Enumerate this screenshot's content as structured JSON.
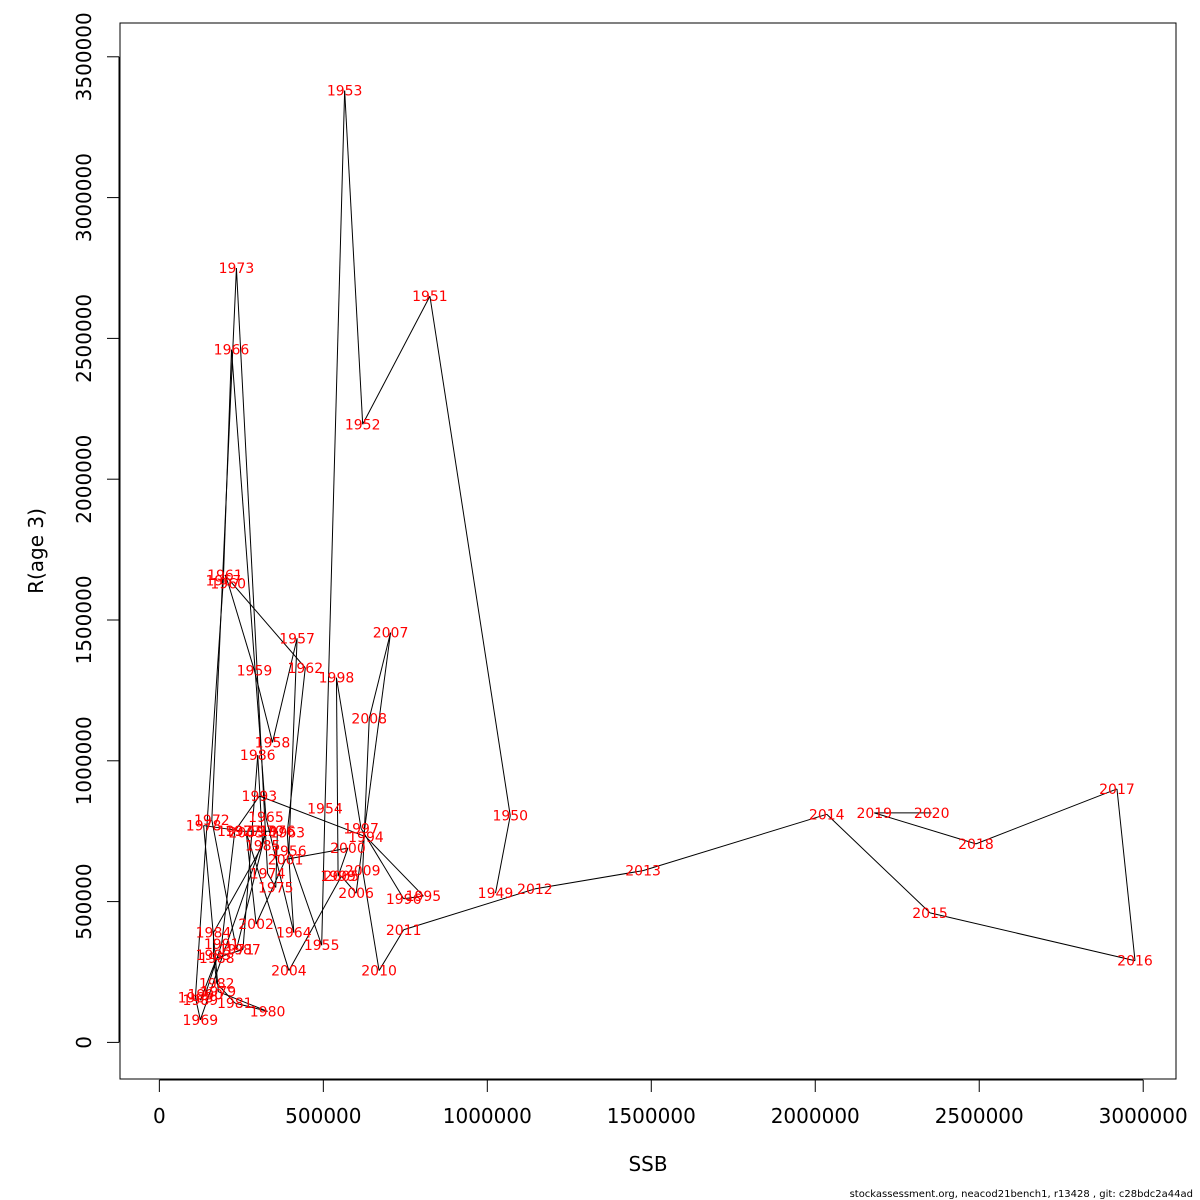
{
  "footer": "stockassessment.org, neacod21bench1, r13428 , git: c28bdc2a44ad",
  "chart_data": {
    "type": "line",
    "xlabel": "SSB",
    "ylabel": "R(age 3)",
    "xlim": [
      -120000,
      3100000
    ],
    "ylim": [
      -130000,
      3620000
    ],
    "x_ticks": [
      0,
      500000,
      1000000,
      1500000,
      2000000,
      2500000,
      3000000
    ],
    "x_tick_labels": [
      "0",
      "500000",
      "1000000",
      "1500000",
      "2000000",
      "2500000",
      "3000000"
    ],
    "y_ticks": [
      0,
      500000,
      1000000,
      1500000,
      2000000,
      2500000,
      3000000,
      3500000
    ],
    "y_tick_labels": [
      "0",
      "500000",
      "1000000",
      "1500000",
      "2000000",
      "2500000",
      "3000000",
      "3500000"
    ],
    "line_color": "#000000",
    "label_color": "#ff0000",
    "points": [
      {
        "label": "1949",
        "x": 1025000,
        "y": 530000
      },
      {
        "label": "1950",
        "x": 1070000,
        "y": 805000
      },
      {
        "label": "1951",
        "x": 825000,
        "y": 2650000
      },
      {
        "label": "1952",
        "x": 620000,
        "y": 2195000
      },
      {
        "label": "1953",
        "x": 565000,
        "y": 3380000
      },
      {
        "label": "1954",
        "x": 505000,
        "y": 830000
      },
      {
        "label": "1955",
        "x": 495000,
        "y": 345000
      },
      {
        "label": "1956",
        "x": 395000,
        "y": 680000
      },
      {
        "label": "1957",
        "x": 420000,
        "y": 1435000
      },
      {
        "label": "1958",
        "x": 345000,
        "y": 1065000
      },
      {
        "label": "1959",
        "x": 290000,
        "y": 1320000
      },
      {
        "label": "1960",
        "x": 210000,
        "y": 1630000
      },
      {
        "label": "1961",
        "x": 200000,
        "y": 1660000
      },
      {
        "label": "1962",
        "x": 445000,
        "y": 1330000
      },
      {
        "label": "1963",
        "x": 390000,
        "y": 745000
      },
      {
        "label": "1964",
        "x": 410000,
        "y": 390000
      },
      {
        "label": "1965",
        "x": 325000,
        "y": 800000
      },
      {
        "label": "1966",
        "x": 220000,
        "y": 2460000
      },
      {
        "label": "1967",
        "x": 195000,
        "y": 1640000
      },
      {
        "label": "1968",
        "x": 110000,
        "y": 160000
      },
      {
        "label": "1969",
        "x": 125000,
        "y": 80000
      },
      {
        "label": "1970",
        "x": 325000,
        "y": 750000
      },
      {
        "label": "1971",
        "x": 235000,
        "y": 330000
      },
      {
        "label": "1972",
        "x": 160000,
        "y": 790000
      },
      {
        "label": "1973",
        "x": 235000,
        "y": 2750000
      },
      {
        "label": "1974",
        "x": 330000,
        "y": 600000
      },
      {
        "label": "1975",
        "x": 355000,
        "y": 550000
      },
      {
        "label": "1976",
        "x": 360000,
        "y": 750000
      },
      {
        "label": "1977",
        "x": 255000,
        "y": 750000
      },
      {
        "label": "1978",
        "x": 135000,
        "y": 770000
      },
      {
        "label": "1979",
        "x": 180000,
        "y": 180000
      },
      {
        "label": "1980",
        "x": 330000,
        "y": 110000
      },
      {
        "label": "1981",
        "x": 230000,
        "y": 140000
      },
      {
        "label": "1982",
        "x": 175000,
        "y": 210000
      },
      {
        "label": "1983",
        "x": 165000,
        "y": 310000
      },
      {
        "label": "1984",
        "x": 165000,
        "y": 390000
      },
      {
        "label": "1985",
        "x": 315000,
        "y": 700000
      },
      {
        "label": "1986",
        "x": 300000,
        "y": 1020000
      },
      {
        "label": "1987",
        "x": 255000,
        "y": 330000
      },
      {
        "label": "1988",
        "x": 175000,
        "y": 300000
      },
      {
        "label": "1989",
        "x": 125000,
        "y": 150000
      },
      {
        "label": "1990",
        "x": 140000,
        "y": 170000
      },
      {
        "label": "1991",
        "x": 190000,
        "y": 350000
      },
      {
        "label": "1992",
        "x": 230000,
        "y": 750000
      },
      {
        "label": "1993",
        "x": 305000,
        "y": 875000
      },
      {
        "label": "1994",
        "x": 630000,
        "y": 730000
      },
      {
        "label": "1995",
        "x": 805000,
        "y": 520000
      },
      {
        "label": "1996",
        "x": 745000,
        "y": 510000
      },
      {
        "label": "1997",
        "x": 615000,
        "y": 760000
      },
      {
        "label": "1998",
        "x": 540000,
        "y": 1295000
      },
      {
        "label": "1999",
        "x": 545000,
        "y": 590000
      },
      {
        "label": "2000",
        "x": 575000,
        "y": 690000
      },
      {
        "label": "2001",
        "x": 385000,
        "y": 650000
      },
      {
        "label": "2002",
        "x": 295000,
        "y": 420000
      },
      {
        "label": "2003",
        "x": 265000,
        "y": 745000
      },
      {
        "label": "2004",
        "x": 395000,
        "y": 255000
      },
      {
        "label": "2005",
        "x": 555000,
        "y": 590000
      },
      {
        "label": "2006",
        "x": 600000,
        "y": 530000
      },
      {
        "label": "2007",
        "x": 705000,
        "y": 1455000
      },
      {
        "label": "2008",
        "x": 640000,
        "y": 1150000
      },
      {
        "label": "2009",
        "x": 620000,
        "y": 610000
      },
      {
        "label": "2010",
        "x": 670000,
        "y": 255000
      },
      {
        "label": "2011",
        "x": 745000,
        "y": 400000
      },
      {
        "label": "2012",
        "x": 1145000,
        "y": 545000
      },
      {
        "label": "2013",
        "x": 1475000,
        "y": 610000
      },
      {
        "label": "2014",
        "x": 2035000,
        "y": 810000
      },
      {
        "label": "2015",
        "x": 2350000,
        "y": 460000
      },
      {
        "label": "2016",
        "x": 2975000,
        "y": 290000
      },
      {
        "label": "2017",
        "x": 2920000,
        "y": 900000
      },
      {
        "label": "2018",
        "x": 2490000,
        "y": 705000
      },
      {
        "label": "2019",
        "x": 2180000,
        "y": 815000
      },
      {
        "label": "2020",
        "x": 2355000,
        "y": 815000
      }
    ]
  }
}
